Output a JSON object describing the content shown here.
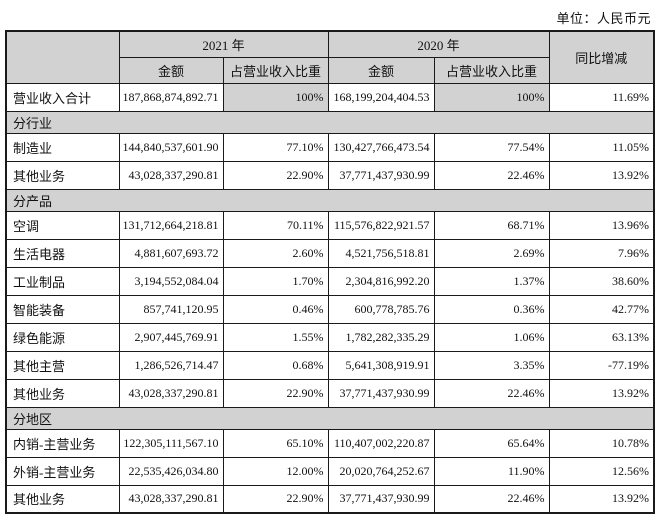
{
  "unit_label": "单位：人民币元",
  "table": {
    "header": {
      "year_2021": "2021 年",
      "year_2020": "2020 年",
      "amount": "金额",
      "proportion": "占营业收入比重",
      "yoy": "同比增减"
    },
    "rows": [
      {
        "type": "data",
        "shaded": true,
        "label": "营业收入合计",
        "a2021": "187,868,874,892.71",
        "p2021": "100%",
        "a2020": "168,199,204,404.53",
        "p2020": "100%",
        "yoy": "11.69%"
      },
      {
        "type": "section",
        "label": "分行业"
      },
      {
        "type": "data",
        "label": "制造业",
        "a2021": "144,840,537,601.90",
        "p2021": "77.10%",
        "a2020": "130,427,766,473.54",
        "p2020": "77.54%",
        "yoy": "11.05%"
      },
      {
        "type": "data",
        "label": "其他业务",
        "a2021": "43,028,337,290.81",
        "p2021": "22.90%",
        "a2020": "37,771,437,930.99",
        "p2020": "22.46%",
        "yoy": "13.92%"
      },
      {
        "type": "section",
        "label": "分产品"
      },
      {
        "type": "data",
        "label": "空调",
        "a2021": "131,712,664,218.81",
        "p2021": "70.11%",
        "a2020": "115,576,822,921.57",
        "p2020": "68.71%",
        "yoy": "13.96%"
      },
      {
        "type": "data",
        "label": "生活电器",
        "a2021": "4,881,607,693.72",
        "p2021": "2.60%",
        "a2020": "4,521,756,518.81",
        "p2020": "2.69%",
        "yoy": "7.96%"
      },
      {
        "type": "data",
        "label": "工业制品",
        "a2021": "3,194,552,084.04",
        "p2021": "1.70%",
        "a2020": "2,304,816,992.20",
        "p2020": "1.37%",
        "yoy": "38.60%"
      },
      {
        "type": "data",
        "label": "智能装备",
        "a2021": "857,741,120.95",
        "p2021": "0.46%",
        "a2020": "600,778,785.76",
        "p2020": "0.36%",
        "yoy": "42.77%"
      },
      {
        "type": "data",
        "label": "绿色能源",
        "a2021": "2,907,445,769.91",
        "p2021": "1.55%",
        "a2020": "1,782,282,335.29",
        "p2020": "1.06%",
        "yoy": "63.13%"
      },
      {
        "type": "data",
        "label": "其他主营",
        "a2021": "1,286,526,714.47",
        "p2021": "0.68%",
        "a2020": "5,641,308,919.91",
        "p2020": "3.35%",
        "yoy": "-77.19%"
      },
      {
        "type": "data",
        "label": "其他业务",
        "a2021": "43,028,337,290.81",
        "p2021": "22.90%",
        "a2020": "37,771,437,930.99",
        "p2020": "22.46%",
        "yoy": "13.92%"
      },
      {
        "type": "section",
        "label": "分地区"
      },
      {
        "type": "data",
        "label": "内销-主营业务",
        "a2021": "122,305,111,567.10",
        "p2021": "65.10%",
        "a2020": "110,407,002,220.87",
        "p2020": "65.64%",
        "yoy": "10.78%"
      },
      {
        "type": "data",
        "label": "外销-主营业务",
        "a2021": "22,535,426,034.80",
        "p2021": "12.00%",
        "a2020": "20,020,764,252.67",
        "p2020": "11.90%",
        "yoy": "12.56%"
      },
      {
        "type": "data",
        "label": "其他业务",
        "a2021": "43,028,337,290.81",
        "p2021": "22.90%",
        "a2020": "37,771,437,930.99",
        "p2020": "22.46%",
        "yoy": "13.92%"
      }
    ],
    "colors": {
      "shaded_bg": "#d2d2d2",
      "border": "#1a1a1a",
      "text": "#111111"
    }
  }
}
